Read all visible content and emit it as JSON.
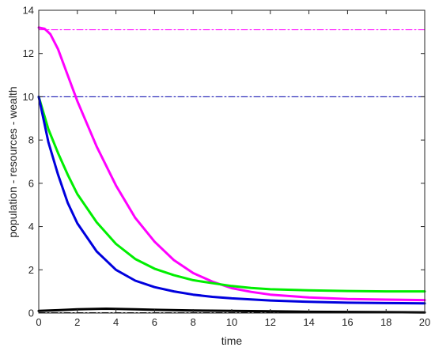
{
  "chart_data": {
    "type": "line",
    "title": "",
    "xlabel": "time",
    "ylabel": "population - resources - wealth",
    "xlim": [
      0,
      20
    ],
    "ylim": [
      0,
      14
    ],
    "xticks": [
      0,
      2,
      4,
      6,
      8,
      10,
      12,
      14,
      16,
      18,
      20
    ],
    "yticks": [
      0,
      2,
      4,
      6,
      8,
      10,
      12,
      14
    ],
    "grid": false,
    "legend": "none",
    "series": [
      {
        "color": "#ff00ff",
        "style": "dashdot",
        "width": 1,
        "x": [
          0,
          20
        ],
        "y": [
          13.1,
          13.1
        ]
      },
      {
        "color": "#0000aa",
        "style": "dashdot",
        "width": 1,
        "x": [
          0,
          20
        ],
        "y": [
          10.0,
          10.0
        ]
      },
      {
        "color": "#ff00ff",
        "style": "solid",
        "width": 3,
        "x": [
          0,
          0.3,
          0.6,
          1,
          1.5,
          2,
          3,
          4,
          5,
          6,
          7,
          8,
          9,
          10,
          11,
          12,
          14,
          16,
          18,
          20
        ],
        "y": [
          13.2,
          13.15,
          12.9,
          12.2,
          11.0,
          9.8,
          7.7,
          5.9,
          4.4,
          3.3,
          2.45,
          1.85,
          1.45,
          1.15,
          0.98,
          0.85,
          0.72,
          0.65,
          0.62,
          0.6
        ]
      },
      {
        "color": "#00ee00",
        "style": "solid",
        "width": 3,
        "x": [
          0,
          0.5,
          1,
          1.5,
          2,
          3,
          4,
          5,
          6,
          7,
          8,
          9,
          10,
          11,
          12,
          14,
          16,
          18,
          20
        ],
        "y": [
          10.0,
          8.5,
          7.4,
          6.4,
          5.5,
          4.2,
          3.2,
          2.5,
          2.05,
          1.75,
          1.52,
          1.38,
          1.25,
          1.16,
          1.1,
          1.05,
          1.02,
          1.0,
          1.0
        ]
      },
      {
        "color": "#0000dd",
        "style": "solid",
        "width": 3,
        "x": [
          0,
          0.5,
          1,
          1.5,
          2,
          3,
          4,
          5,
          6,
          7,
          8,
          9,
          10,
          12,
          14,
          16,
          18,
          20
        ],
        "y": [
          10.0,
          7.9,
          6.4,
          5.1,
          4.15,
          2.85,
          2.0,
          1.5,
          1.2,
          1.0,
          0.85,
          0.75,
          0.68,
          0.58,
          0.52,
          0.48,
          0.46,
          0.45
        ]
      },
      {
        "color": "#000000",
        "style": "solid",
        "width": 3,
        "x": [
          0,
          1,
          2,
          3,
          3.5,
          4,
          5,
          6,
          8,
          10,
          12,
          14,
          16,
          18,
          20
        ],
        "y": [
          0.1,
          0.13,
          0.17,
          0.19,
          0.2,
          0.19,
          0.17,
          0.15,
          0.12,
          0.1,
          0.08,
          0.06,
          0.05,
          0.04,
          0.03
        ]
      },
      {
        "color": "#000000",
        "style": "dashdot",
        "width": 1,
        "x": [
          0,
          20
        ],
        "y": [
          0.02,
          0.02
        ]
      }
    ]
  }
}
